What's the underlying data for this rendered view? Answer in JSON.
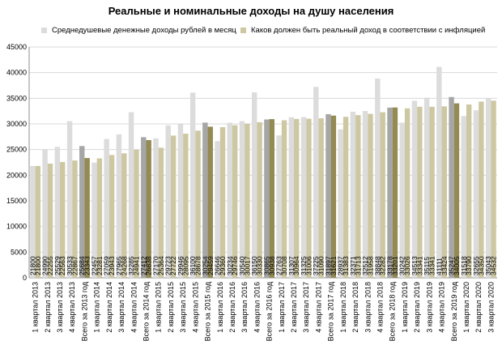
{
  "chart_data": {
    "type": "bar",
    "title": "Реальные и номинальные доходы на душу населения",
    "ylim": [
      0,
      45000
    ],
    "yticks": [
      0,
      5000,
      10000,
      15000,
      20000,
      25000,
      30000,
      35000,
      40000,
      45000
    ],
    "grid": true,
    "legend_position": "top",
    "categories": [
      "1 квартал 2013",
      "2 квартал 2013",
      "3 квартал 2013",
      "4 квартал 2013",
      "Всего за 2013 год",
      "1 квартал 2014",
      "2 квартал 2014",
      "3 квартал 2014",
      "4 квартал 2014",
      "Всего за 2014 год",
      "1 квартал 2015",
      "2 квартал 2015",
      "3 квартал 2015",
      "4 квартал 2015",
      "Всего за 2015 год",
      "1 квартал 2016",
      "2 квартал 2016",
      "3 квартал 2016",
      "4 квартал 2016",
      "Всего за 2016 год",
      "1 квартал 2017",
      "2 квартал 2017",
      "3 квартал 2017",
      "4 квартал 2017",
      "Всего за 2017 год",
      "1 квартал 2018",
      "2 квартал 2018",
      "3 квартал 2018",
      "4 квартал 2018",
      "Всего за 2018 год",
      "1 квартал 2019",
      "2 квартал 2019",
      "3 квартал 2019",
      "4 квартал 2019",
      "Всего за 2019 год",
      "1 квартал 2020",
      "2 квартал 2020",
      "3 квартал 2020"
    ],
    "series": [
      {
        "name": "Среднедушевые  денежные доходы рублей в месяц",
        "color": "#dcdcdc",
        "total_color": "#a6a6a6",
        "values": [
          21800,
          24990,
          25529,
          30533,
          25684,
          22457,
          27059,
          27965,
          32285,
          27412,
          27170,
          29723,
          29946,
          36100,
          30254,
          26646,
          30234,
          30540,
          36150,
          30865,
          27763,
          31307,
          31325,
          37225,
          31897,
          28937,
          32371,
          32512,
          38848,
          33178,
          30242,
          34513,
          35115,
          41111,
          35247,
          31518,
          32655,
          35043
        ]
      },
      {
        "name": "Каков должен быть реальный доход в соответствии  с инфляцией",
        "color": "#cdc8a2",
        "total_color": "#948a54",
        "values": [
          21800,
          22255,
          22563,
          22867,
          23343,
          23281,
          23943,
          24268,
          24941,
          26838,
          25364,
          27722,
          28095,
          28678,
          29459,
          29360,
          29746,
          30017,
          30330,
          30938,
          30708,
          30964,
          31006,
          31090,
          31621,
          31383,
          31713,
          31958,
          32282,
          33201,
          33026,
          33341,
          33341,
          33424,
          34005,
          33790,
          34350,
          34532
        ]
      }
    ]
  }
}
